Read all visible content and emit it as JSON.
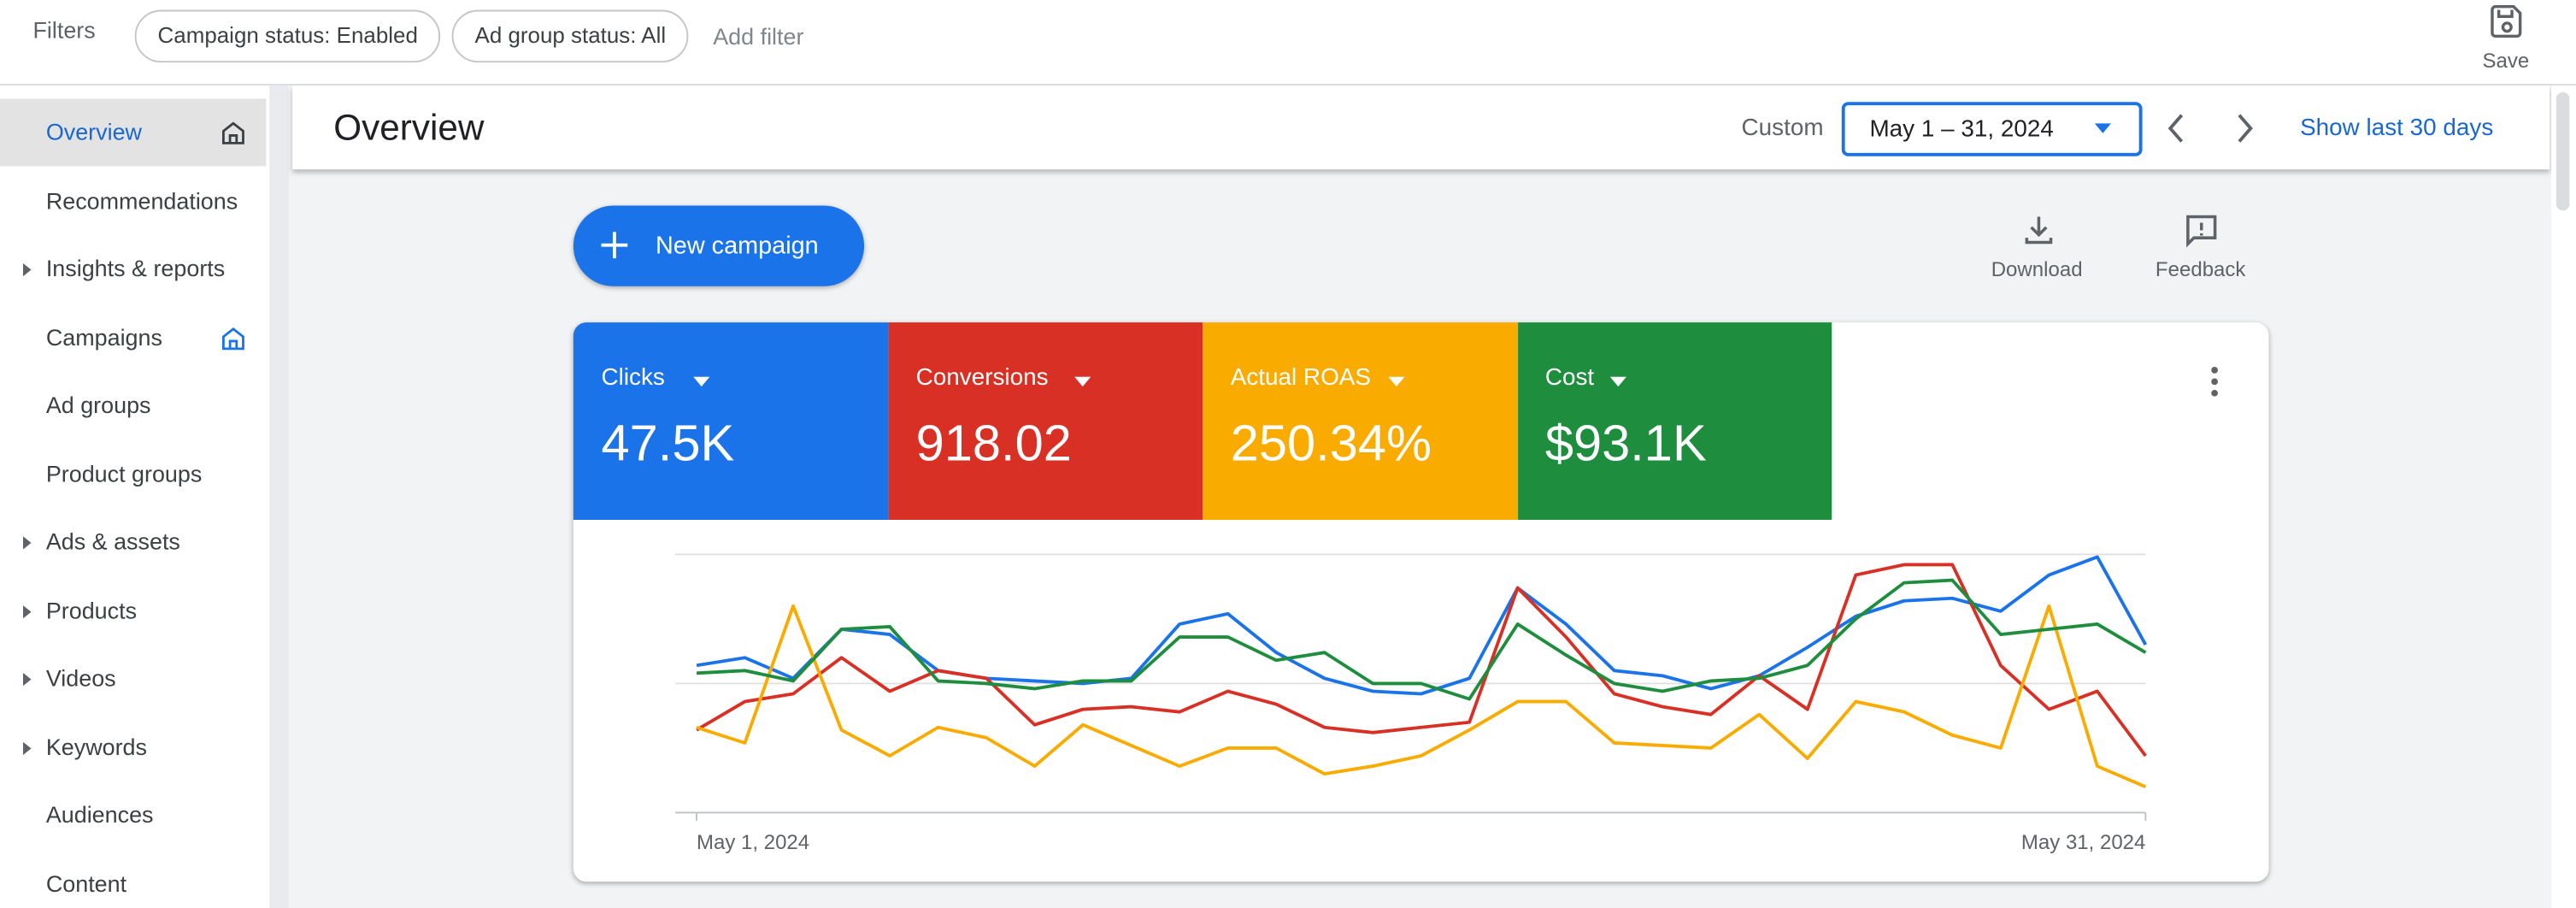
{
  "filters": {
    "label": "Filters",
    "chips": [
      "Campaign status: Enabled",
      "Ad group status: All"
    ],
    "add": "Add filter",
    "save": "Save"
  },
  "nav": {
    "selected": 0,
    "items": [
      {
        "label": "Overview",
        "expandable": false
      },
      {
        "label": "Recommendations",
        "expandable": false
      },
      {
        "label": "Insights & reports",
        "expandable": true
      },
      {
        "label": "Campaigns",
        "expandable": false
      },
      {
        "label": "Ad groups",
        "expandable": false
      },
      {
        "label": "Product groups",
        "expandable": false
      },
      {
        "label": "Ads & assets",
        "expandable": true
      },
      {
        "label": "Products",
        "expandable": true
      },
      {
        "label": "Videos",
        "expandable": true
      },
      {
        "label": "Keywords",
        "expandable": true
      },
      {
        "label": "Audiences",
        "expandable": false
      },
      {
        "label": "Content",
        "expandable": false
      }
    ]
  },
  "header": {
    "title": "Overview",
    "range_type": "Custom",
    "date_range": "May 1 – 31, 2024",
    "show_last": "Show last 30 days"
  },
  "actions": {
    "new_campaign": "New campaign",
    "download": "Download",
    "feedback": "Feedback"
  },
  "chart_data": {
    "type": "line",
    "categories": [
      "May 1, 2024",
      null,
      null,
      null,
      null,
      null,
      null,
      null,
      null,
      null,
      null,
      null,
      null,
      null,
      null,
      null,
      null,
      null,
      null,
      null,
      null,
      null,
      null,
      null,
      null,
      null,
      null,
      null,
      null,
      null,
      "May 31, 2024"
    ],
    "ylim": [
      0,
      100
    ],
    "yticks": [
      0,
      50,
      100
    ],
    "grid": true,
    "series": [
      {
        "name": "Clicks",
        "summary": "47.5K",
        "color": "#1a73e8",
        "values": [
          57,
          60,
          52,
          71,
          69,
          55,
          52,
          51,
          50,
          52,
          73,
          77,
          62,
          52,
          47,
          46,
          52,
          87,
          73,
          55,
          53,
          48,
          53,
          64,
          76,
          82,
          83,
          78,
          92,
          99,
          65
        ]
      },
      {
        "name": "Conversions",
        "summary": "918.02",
        "color": "#d93025",
        "values": [
          32,
          43,
          46,
          60,
          47,
          55,
          52,
          34,
          40,
          41,
          39,
          47,
          42,
          33,
          31,
          33,
          35,
          87,
          68,
          46,
          41,
          38,
          53,
          40,
          92,
          96,
          96,
          57,
          40,
          47,
          22
        ]
      },
      {
        "name": "Actual ROAS",
        "summary": "250.34%",
        "color": "#f9ab00",
        "values": [
          33,
          27,
          80,
          32,
          22,
          33,
          29,
          18,
          34,
          26,
          18,
          25,
          25,
          15,
          18,
          22,
          32,
          43,
          43,
          27,
          26,
          25,
          38,
          21,
          43,
          39,
          30,
          25,
          80,
          18,
          10
        ]
      },
      {
        "name": "Cost",
        "summary": "$93.1K",
        "color": "#1e8e3e",
        "values": [
          54,
          55,
          51,
          71,
          72,
          51,
          50,
          48,
          51,
          51,
          68,
          68,
          59,
          62,
          50,
          50,
          44,
          73,
          61,
          50,
          47,
          51,
          52,
          57,
          75,
          89,
          90,
          69,
          71,
          73,
          62
        ]
      }
    ]
  }
}
